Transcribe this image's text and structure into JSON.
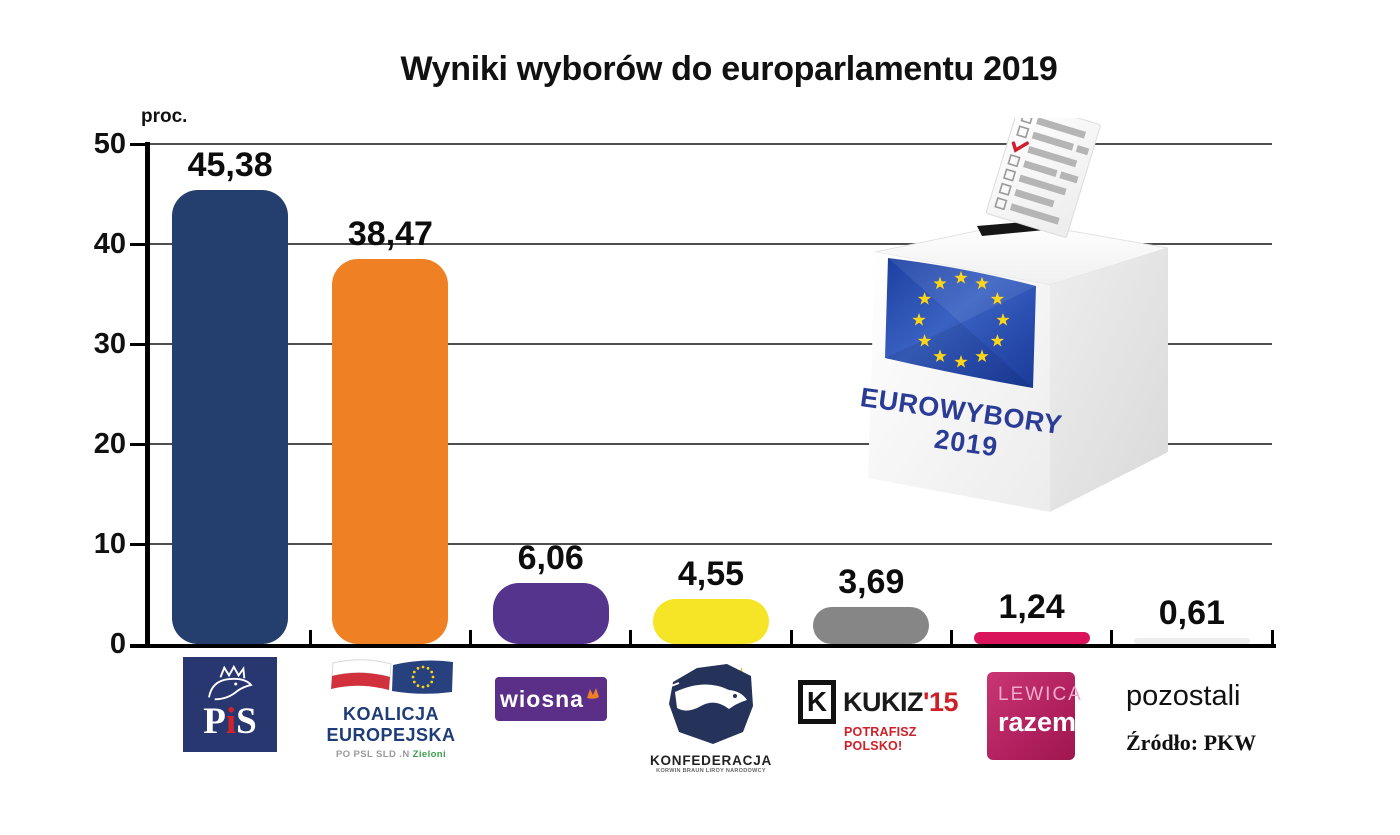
{
  "chart_data": {
    "type": "bar",
    "title": "Wyniki wyborów do europarlamentu 2019",
    "ylabel": "proc.",
    "xlabel": "",
    "ylim": [
      0,
      50
    ],
    "yticks": [
      0,
      10,
      20,
      30,
      40,
      50
    ],
    "grid": true,
    "legend": false,
    "categories": [
      "PiS",
      "Koalicja Europejska",
      "Wiosna",
      "Konfederacja",
      "Kukiz'15",
      "Lewica Razem",
      "pozostali"
    ],
    "values": [
      45.38,
      38.47,
      6.06,
      4.55,
      3.69,
      1.24,
      0.61
    ],
    "value_labels": [
      "45,38",
      "38,47",
      "6,06",
      "4,55",
      "3,69",
      "1,24",
      "0,61"
    ],
    "bar_colors": [
      "#243e6d",
      "#ef8023",
      "#54348c",
      "#f6e427",
      "#868686",
      "#d9145b",
      "#ededed"
    ],
    "source": "Źródło: PKW"
  },
  "ballot_box": {
    "label_line1": "EUROWYBORY",
    "label_line2": "2019",
    "flag": "eu-flag-12-stars",
    "text_color": "#2b3c97"
  },
  "logos": {
    "pis": {
      "text_p": "P",
      "text_i": "i",
      "text_s": "S",
      "bg": "#293771"
    },
    "koalicja": {
      "line1": "KOALICJA",
      "line2": "EUROPEJSKA",
      "sub_gray": "PO PSL SLD .N",
      "sub_green": "Zieloni"
    },
    "wiosna": {
      "text": "wiosna",
      "bg": "#5b2e87"
    },
    "konfederacja": {
      "text": "KONFEDERACJA",
      "sub": "KORWIN BRAUN LIROY NARODOWCY"
    },
    "kukiz": {
      "icon_letter": "K",
      "name": "KUKIZ",
      "year": "'15",
      "slogan": "POTRAFISZ POLSKO!"
    },
    "lewica": {
      "line1": "LEWICA",
      "line2": "razem"
    },
    "pozostali": "pozostali"
  }
}
